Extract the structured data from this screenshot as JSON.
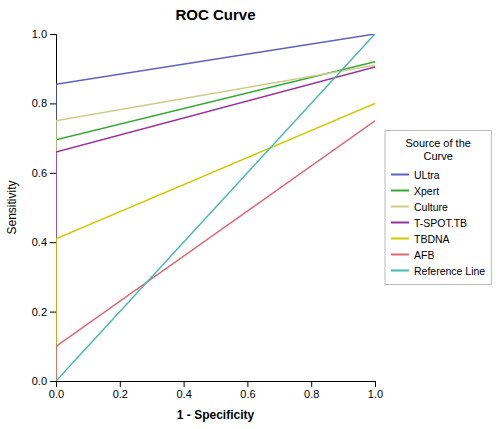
{
  "chart_data": {
    "type": "line",
    "title": "ROC Curve",
    "x_label": "1 - Specificity",
    "y_label": "Sensitivity",
    "legend_title": "Source of the\nCurve",
    "series": [
      {
        "name": "ULtra",
        "color": "#6060c0",
        "x": [
          0.0,
          0.0,
          1.0
        ],
        "values": [
          0.0,
          0.855,
          1.0
        ]
      },
      {
        "name": "Xpert",
        "color": "#33aa33",
        "x": [
          0.0,
          0.0,
          1.0
        ],
        "values": [
          0.0,
          0.695,
          0.92
        ]
      },
      {
        "name": "Culture",
        "color": "#cccc88",
        "x": [
          0.0,
          0.0,
          1.0
        ],
        "values": [
          0.0,
          0.75,
          0.91
        ]
      },
      {
        "name": "T-SPOT.TB",
        "color": "#993399",
        "x": [
          0.0,
          0.0,
          1.0
        ],
        "values": [
          0.0,
          0.66,
          0.905
        ]
      },
      {
        "name": "TBDNA",
        "color": "#cccc00",
        "x": [
          0.0,
          0.0,
          1.0
        ],
        "values": [
          0.0,
          0.41,
          0.8
        ]
      },
      {
        "name": "AFB",
        "color": "#dd6677",
        "x": [
          0.0,
          0.0,
          1.0
        ],
        "values": [
          0.0,
          0.1,
          0.75
        ]
      },
      {
        "name": "Reference Line",
        "color": "#44bbaa",
        "x": [
          0.0,
          1.0
        ],
        "values": [
          0.0,
          1.0
        ]
      }
    ],
    "xlim": [
      0.0,
      1.0
    ],
    "ylim": [
      0.0,
      1.0
    ],
    "xticks": [
      {
        "value": 0.0,
        "label": "0.0"
      },
      0.2,
      0.4,
      0.6,
      0.8,
      {
        "value": 1.0,
        "label": "1.0"
      }
    ],
    "yticks": [
      {
        "value": 0.0,
        "label": "0.0"
      },
      0.2,
      0.4,
      0.6,
      0.8,
      {
        "value": 1.0,
        "label": "1.0"
      }
    ],
    "grid": false,
    "legend": "right"
  }
}
